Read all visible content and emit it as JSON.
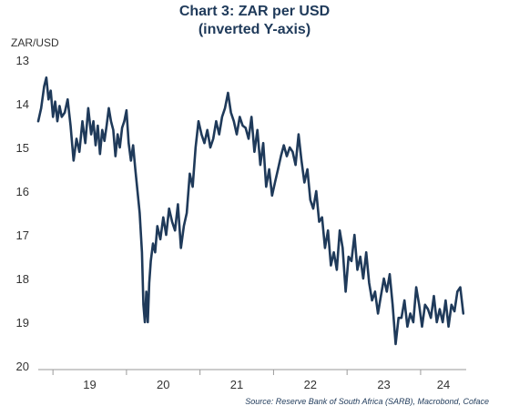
{
  "chart_data": {
    "type": "line",
    "title": "Chart 3: ZAR per USD",
    "subtitle": "(inverted Y-axis)",
    "ylabel": "ZAR/USD",
    "xlabel": "",
    "y_inverted": true,
    "ylim": [
      13,
      20
    ],
    "y_ticks": [
      "13",
      "14",
      "15",
      "16",
      "17",
      "18",
      "19",
      "20"
    ],
    "x_ticks": [
      "19",
      "20",
      "21",
      "22",
      "23",
      "24"
    ],
    "xlim": [
      2018.8,
      2024.62
    ],
    "grid": false,
    "legend": "none",
    "line_color": "#1f3a5a",
    "source": "Source: Reserve Bank of South Africa (SARB), Macrobond, Coface",
    "series": [
      {
        "x": [
          2018.8,
          2018.84,
          2018.88,
          2018.91,
          2018.94,
          2018.97,
          2019.0,
          2019.03,
          2019.06,
          2019.09,
          2019.12,
          2019.16,
          2019.2,
          2019.24,
          2019.28,
          2019.32,
          2019.36,
          2019.4,
          2019.44,
          2019.48,
          2019.52,
          2019.55,
          2019.58,
          2019.61,
          2019.64,
          2019.67,
          2019.7,
          2019.73,
          2019.76,
          2019.79,
          2019.82,
          2019.85,
          2019.88,
          2019.91,
          2019.94,
          2019.97,
          2020.0,
          2020.03,
          2020.06,
          2020.09,
          2020.12,
          2020.15,
          2020.18,
          2020.21,
          2020.23,
          2020.25,
          2020.27,
          2020.29,
          2020.31,
          2020.33,
          2020.36,
          2020.39,
          2020.42,
          2020.46,
          2020.5,
          2020.54,
          2020.58,
          2020.62,
          2020.66,
          2020.7,
          2020.74,
          2020.78,
          2020.82,
          2020.86,
          2020.9,
          2020.94,
          2020.98,
          2021.02,
          2021.06,
          2021.1,
          2021.14,
          2021.18,
          2021.22,
          2021.26,
          2021.3,
          2021.34,
          2021.38,
          2021.42,
          2021.46,
          2021.5,
          2021.54,
          2021.58,
          2021.62,
          2021.66,
          2021.7,
          2021.74,
          2021.78,
          2021.82,
          2021.86,
          2021.9,
          2021.94,
          2021.98,
          2022.02,
          2022.06,
          2022.1,
          2022.14,
          2022.18,
          2022.22,
          2022.26,
          2022.3,
          2022.34,
          2022.38,
          2022.42,
          2022.46,
          2022.5,
          2022.54,
          2022.58,
          2022.62,
          2022.66,
          2022.7,
          2022.74,
          2022.78,
          2022.82,
          2022.86,
          2022.9,
          2022.94,
          2022.98,
          2023.02,
          2023.06,
          2023.1,
          2023.14,
          2023.18,
          2023.22,
          2023.26,
          2023.3,
          2023.34,
          2023.38,
          2023.42,
          2023.46,
          2023.5,
          2023.54,
          2023.58,
          2023.62,
          2023.66,
          2023.7,
          2023.74,
          2023.78,
          2023.82,
          2023.86,
          2023.9,
          2023.94,
          2023.98,
          2024.02,
          2024.06,
          2024.1,
          2024.14,
          2024.18,
          2024.22,
          2024.26,
          2024.3,
          2024.34,
          2024.38,
          2024.42,
          2024.46,
          2024.5,
          2024.54,
          2024.58
        ],
        "values": [
          14.4,
          14.1,
          13.6,
          13.4,
          13.9,
          13.7,
          14.3,
          13.95,
          14.4,
          14.05,
          14.3,
          14.2,
          13.9,
          14.5,
          15.3,
          14.8,
          15.1,
          14.4,
          14.9,
          14.1,
          14.7,
          14.4,
          14.95,
          14.5,
          15.15,
          14.6,
          14.85,
          14.5,
          14.1,
          14.4,
          14.6,
          15.2,
          14.7,
          15.0,
          14.55,
          14.4,
          14.15,
          14.9,
          15.3,
          14.95,
          15.5,
          16.0,
          16.5,
          17.4,
          18.6,
          19.0,
          18.3,
          19.0,
          18.1,
          17.6,
          17.2,
          17.4,
          16.8,
          17.1,
          16.6,
          17.0,
          16.4,
          16.7,
          16.9,
          16.3,
          17.3,
          16.8,
          16.5,
          15.6,
          15.9,
          15.0,
          14.4,
          14.7,
          14.9,
          14.6,
          15.0,
          14.8,
          14.4,
          14.7,
          14.3,
          14.1,
          13.75,
          14.2,
          14.4,
          14.7,
          14.3,
          14.5,
          14.55,
          14.8,
          14.3,
          15.1,
          14.6,
          15.4,
          14.9,
          15.9,
          15.5,
          16.1,
          15.8,
          15.5,
          15.2,
          14.95,
          15.2,
          15.0,
          15.1,
          15.4,
          14.7,
          15.3,
          15.8,
          15.5,
          16.2,
          16.4,
          16.0,
          16.7,
          16.6,
          17.3,
          16.9,
          17.7,
          17.4,
          17.8,
          16.9,
          17.3,
          18.3,
          17.5,
          17.6,
          17.0,
          17.8,
          17.5,
          18.0,
          17.4,
          18.1,
          18.5,
          18.3,
          18.8,
          18.4,
          18.0,
          18.3,
          17.9,
          18.6,
          19.5,
          18.9,
          18.9,
          18.5,
          19.1,
          18.8,
          19.0,
          18.2,
          18.6,
          19.1,
          18.6,
          18.7,
          18.9,
          18.4,
          19.0,
          18.7,
          19.0,
          18.5,
          19.1,
          18.6,
          18.75,
          18.3,
          18.2,
          18.8
        ]
      }
    ]
  }
}
